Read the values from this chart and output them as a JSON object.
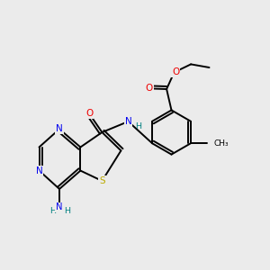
{
  "background_color": "#ebebeb",
  "bond_color": "#000000",
  "lw": 1.4,
  "colors": {
    "N": "#0000ee",
    "O": "#ee0000",
    "S": "#bbaa00",
    "H_label": "#008080"
  },
  "xlim": [
    0,
    10
  ],
  "ylim": [
    0,
    10
  ]
}
